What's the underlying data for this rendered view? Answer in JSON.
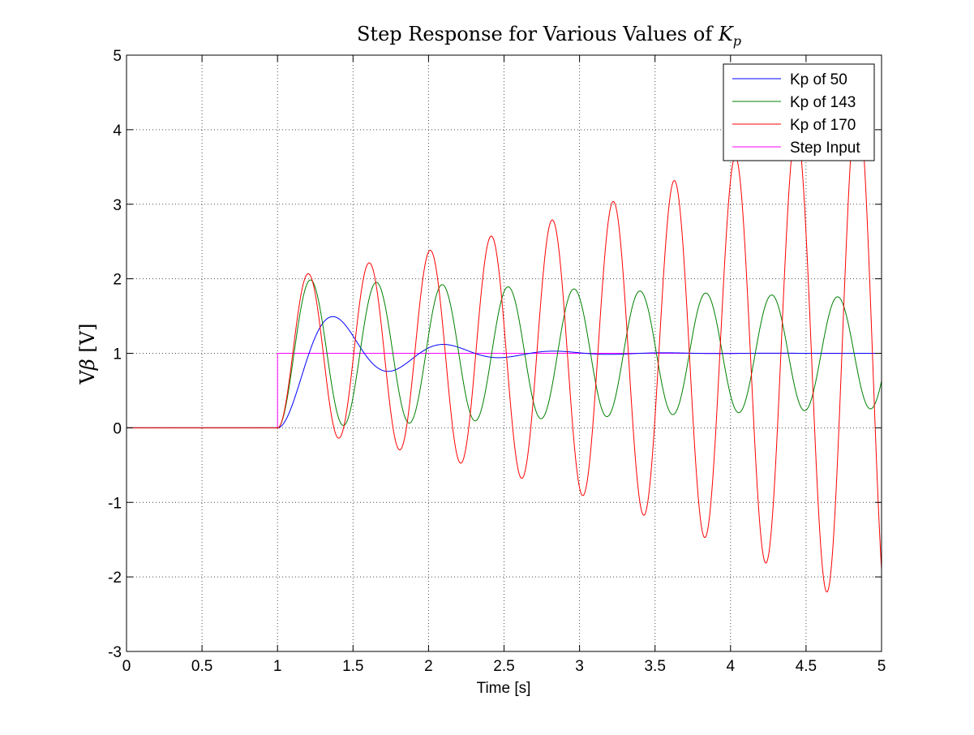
{
  "chart_data": {
    "type": "line",
    "title": {
      "prefix": "Step Response for Various Values of ",
      "symbol": "K",
      "subscript": "p"
    },
    "xlabel": "Time [s]",
    "ylabel": {
      "prefix": "V",
      "symbol": "β",
      "suffix": " [V]"
    },
    "xlim": [
      0,
      5
    ],
    "ylim": [
      -3,
      5
    ],
    "xticks": [
      0,
      0.5,
      1,
      1.5,
      2,
      2.5,
      3,
      3.5,
      4,
      4.5,
      5
    ],
    "xtick_labels": [
      "0",
      "0.5",
      "1",
      "1.5",
      "2",
      "2.5",
      "3",
      "3.5",
      "4",
      "4.5",
      "5"
    ],
    "yticks": [
      -3,
      -2,
      -1,
      0,
      1,
      2,
      3,
      4,
      5
    ],
    "ytick_labels": [
      "-3",
      "-2",
      "-1",
      "0",
      "1",
      "2",
      "3",
      "4",
      "5"
    ],
    "grid": true,
    "grid_style": "dotted",
    "legend_position": "top-right",
    "step_time": 1,
    "series": [
      {
        "name": "Kp of 50",
        "color": "#0000ff",
        "model": "second-order",
        "amplitude": 1,
        "damping_ratio": 0.22,
        "natural_frequency_rad_s": 8.8,
        "growth_rate": 0
      },
      {
        "name": "Kp of 143",
        "color": "#008000",
        "model": "second-order",
        "amplitude": 1,
        "damping_ratio": 0.0052,
        "natural_frequency_rad_s": 14.4,
        "growth_rate": 0
      },
      {
        "name": "Kp of 170",
        "color": "#ff0000",
        "model": "growing-oscillation",
        "amplitude": 1,
        "damping_ratio": 0,
        "natural_frequency_rad_s": 15.55,
        "growth_rate": 0.32
      },
      {
        "name": "Step Input",
        "color": "#ff00ff",
        "model": "step",
        "amplitude": 1,
        "damping_ratio": 0,
        "natural_frequency_rad_s": 0,
        "growth_rate": 0
      }
    ]
  }
}
